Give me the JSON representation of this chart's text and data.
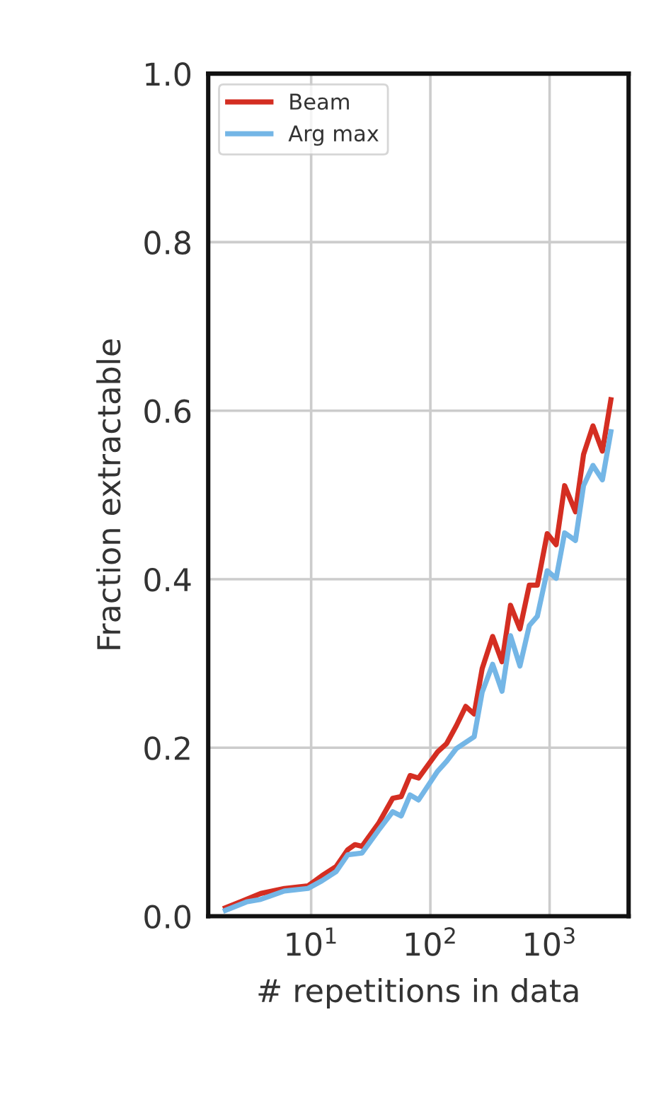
{
  "chart_data": {
    "type": "line",
    "xlabel": "# repetitions in data",
    "ylabel": "Fraction extractable",
    "log": "x",
    "xlim": [
      1.37,
      4600
    ],
    "xticks": [
      {
        "value": 10,
        "label": "10$^{1}$"
      },
      {
        "value": 100,
        "label": "10$^{2}$"
      },
      {
        "value": 1000,
        "label": "10$^{3}$"
      }
    ],
    "ylim": [
      0.0,
      1.0
    ],
    "yticks": [
      {
        "value": 0,
        "label": "0.0"
      },
      0.2,
      0.4,
      0.6,
      0.8,
      {
        "value": 1,
        "label": "1.0"
      }
    ],
    "grid": true,
    "legend": "top left",
    "series": [
      {
        "name": "Beam",
        "color": "#d42e22",
        "x": [
          1.91,
          2.87,
          3.78,
          5.96,
          9.4,
          12.3,
          16.2,
          20.3,
          23.3,
          26.7,
          36.7,
          48.3,
          56.9,
          67.6,
          79.6,
          115,
          137,
          165,
          198,
          233,
          272,
          333,
          399,
          470,
          564,
          676,
          789,
          955,
          1135,
          1337,
          1648,
          1926,
          2312,
          2773,
          3266
        ],
        "values": [
          0.01,
          0.02,
          0.027,
          0.033,
          0.036,
          0.048,
          0.059,
          0.079,
          0.085,
          0.083,
          0.11,
          0.14,
          0.142,
          0.167,
          0.164,
          0.195,
          0.205,
          0.226,
          0.249,
          0.24,
          0.294,
          0.332,
          0.302,
          0.369,
          0.341,
          0.393,
          0.393,
          0.454,
          0.441,
          0.511,
          0.48,
          0.548,
          0.582,
          0.552,
          0.613
        ]
      },
      {
        "name": "Arg max",
        "color": "#74b6e6",
        "x": [
          1.91,
          2.87,
          3.78,
          5.96,
          9.4,
          12.3,
          16.2,
          20.3,
          26.7,
          36.7,
          48.3,
          56.9,
          67.6,
          79.6,
          115,
          137,
          165,
          233,
          272,
          333,
          399,
          470,
          564,
          676,
          789,
          955,
          1135,
          1337,
          1648,
          1926,
          2312,
          2773,
          3266
        ],
        "values": [
          0.007,
          0.017,
          0.02,
          0.03,
          0.033,
          0.042,
          0.053,
          0.073,
          0.075,
          0.102,
          0.124,
          0.119,
          0.144,
          0.138,
          0.172,
          0.184,
          0.199,
          0.213,
          0.266,
          0.299,
          0.267,
          0.333,
          0.297,
          0.345,
          0.356,
          0.41,
          0.401,
          0.455,
          0.446,
          0.511,
          0.535,
          0.518,
          0.575
        ]
      }
    ]
  }
}
